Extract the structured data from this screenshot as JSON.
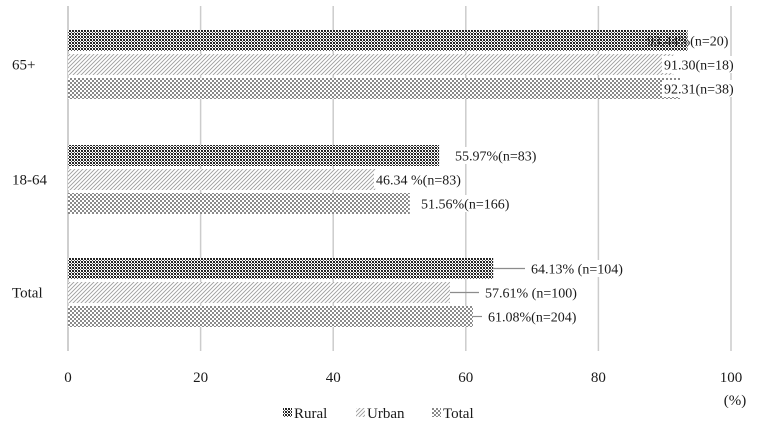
{
  "chart_data": {
    "type": "bar",
    "orientation": "horizontal",
    "categories": [
      "65+",
      "18-64",
      "Total"
    ],
    "series": [
      {
        "name": "Rural",
        "values": [
          93.44,
          55.97,
          64.13
        ],
        "labels": [
          "93.44%(n=20)",
          "55.97%(n=83)",
          "64.13% (n=104)"
        ]
      },
      {
        "name": "Urban",
        "values": [
          91.3,
          46.34,
          57.61
        ],
        "labels": [
          "91.30(n=18)",
          "46.34 %(n=83)",
          "57.61% (n=100)"
        ]
      },
      {
        "name": "Total",
        "values": [
          92.31,
          51.56,
          61.08
        ],
        "labels": [
          "92.31(n=38)",
          "51.56%(n=166)",
          "61.08%(n=204)"
        ]
      }
    ],
    "xlim": [
      0,
      100
    ],
    "xticks": [
      "0",
      "20",
      "40",
      "60",
      "80",
      "100"
    ],
    "unit_label": "(%)",
    "grid": "vertical",
    "legend_position": "bottom",
    "colors": {
      "Rural": "#3c3c3c",
      "Urban": "#d9d9d9",
      "Total": "#9a9a9a",
      "grid": "#cccccc",
      "axis": "#bfbfbf"
    }
  }
}
